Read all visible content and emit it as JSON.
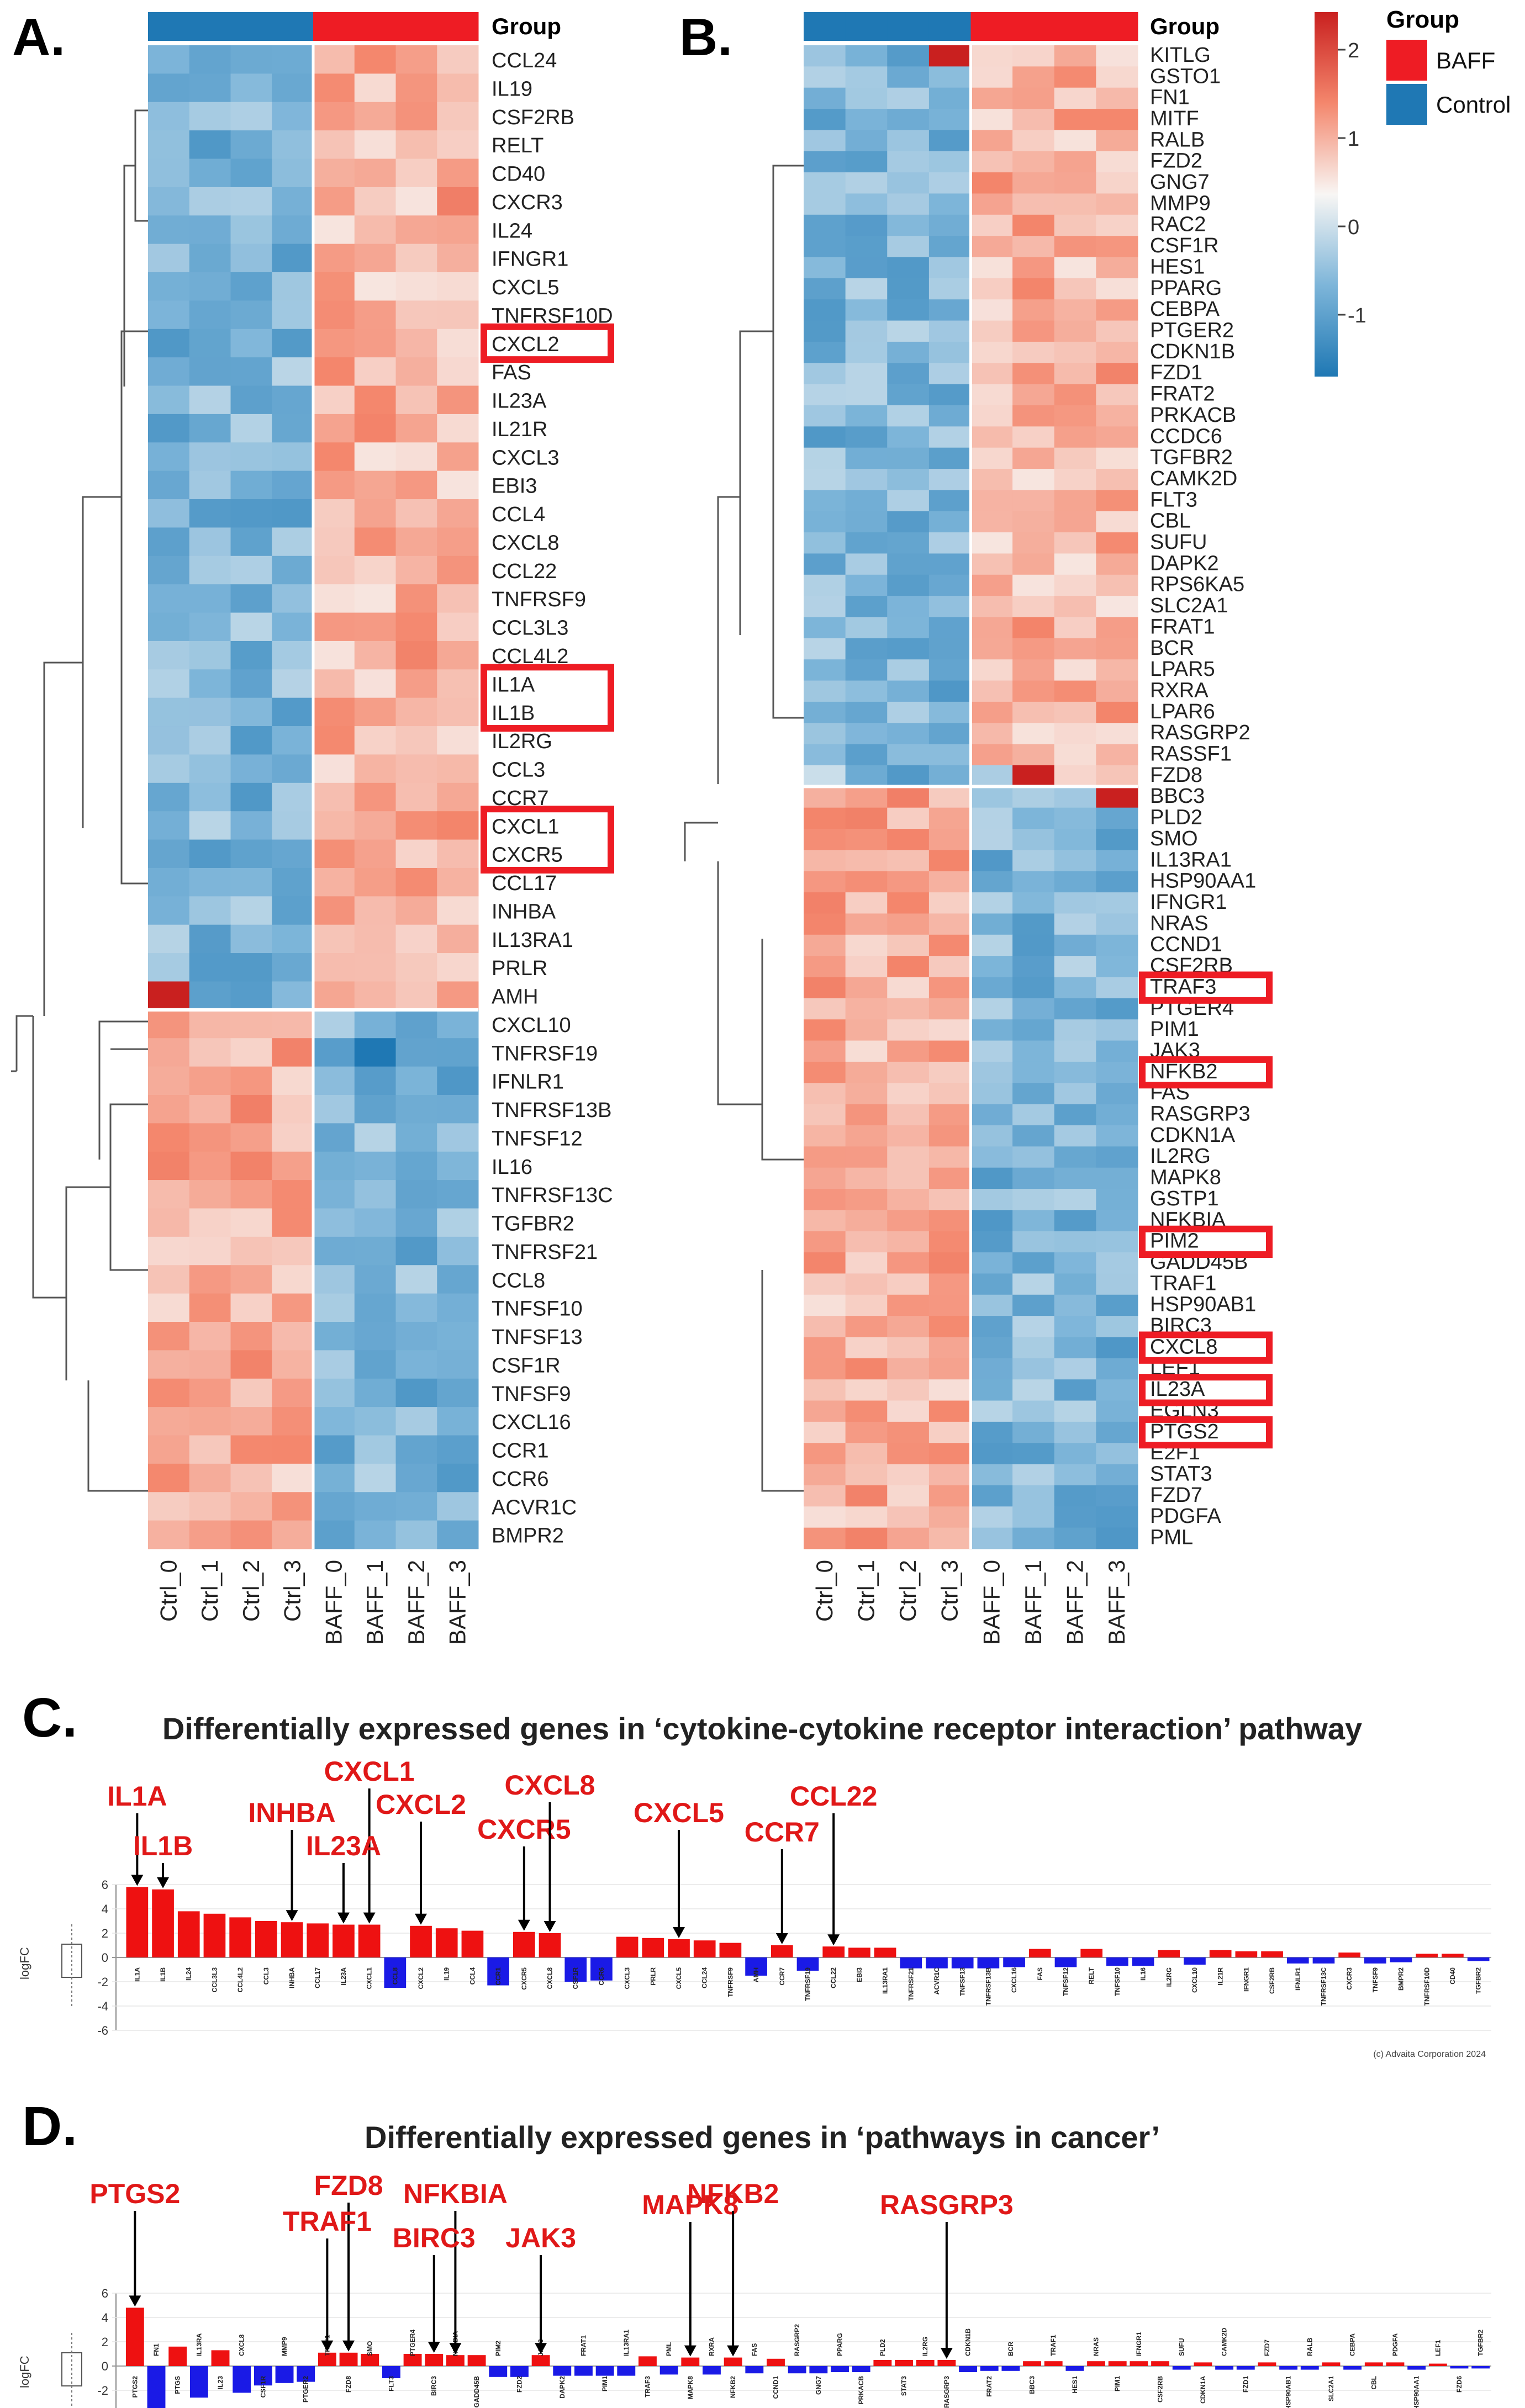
{
  "panels": {
    "A": {
      "letter": "A.",
      "group_label": "Group",
      "genes": [
        "CCL24",
        "IL19",
        "CSF2RB",
        "RELT",
        "CD40",
        "CXCR3",
        "IL24",
        "IFNGR1",
        "CXCL5",
        "TNFRSF10D",
        "CXCL2",
        "FAS",
        "IL23A",
        "IL21R",
        "CXCL3",
        "EBI3",
        "CCL4",
        "CXCL8",
        "CCL22",
        "TNFRSF9",
        "CCL3L3",
        "CCL4L2",
        "IL1A",
        "IL1B",
        "IL2RG",
        "CCL3",
        "CCR7",
        "CXCL1",
        "CXCR5",
        "CCL17",
        "INHBA",
        "IL13RA1",
        "PRLR",
        "AMH",
        "CXCL10",
        "TNFRSF19",
        "IFNLR1",
        "TNFRSF13B",
        "TNFSF12",
        "IL16",
        "TNFRSF13C",
        "TGFBR2",
        "TNFRSF21",
        "CCL8",
        "TNFSF10",
        "TNFSF13",
        "CSF1R",
        "TNFSF9",
        "CXCL16",
        "CCR1",
        "CCR6",
        "ACVR1C",
        "BMPR2"
      ],
      "samples": [
        "Ctrl_0",
        "Ctrl_1",
        "Ctrl_2",
        "Ctrl_3",
        "BAFF_0",
        "BAFF_1",
        "BAFF_2",
        "BAFF_3"
      ],
      "highlighted": [
        "CXCL2",
        "IL1A",
        "IL1B",
        "CXCL1",
        "CXCR5"
      ],
      "split_after": 33
    },
    "B": {
      "letter": "B.",
      "group_label": "Group",
      "genes": [
        "KITLG",
        "GSTO1",
        "FN1",
        "MITF",
        "RALB",
        "FZD2",
        "GNG7",
        "MMP9",
        "RAC2",
        "CSF1R",
        "HES1",
        "PPARG",
        "CEBPA",
        "PTGER2",
        "CDKN1B",
        "FZD1",
        "FRAT2",
        "PRKACB",
        "CCDC6",
        "TGFBR2",
        "CAMK2D",
        "FLT3",
        "CBL",
        "SUFU",
        "DAPK2",
        "RPS6KA5",
        "SLC2A1",
        "FRAT1",
        "BCR",
        "LPAR5",
        "RXRA",
        "LPAR6",
        "RASGRP2",
        "RASSF1",
        "FZD8",
        "BBC3",
        "PLD2",
        "SMO",
        "IL13RA1",
        "HSP90AA1",
        "IFNGR1",
        "NRAS",
        "CCND1",
        "CSF2RB",
        "TRAF3",
        "PTGER4",
        "PIM1",
        "JAK3",
        "NFKB2",
        "FAS",
        "RASGRP3",
        "CDKN1A",
        "IL2RG",
        "MAPK8",
        "GSTP1",
        "NFKBIA",
        "PIM2",
        "GADD45B",
        "TRAF1",
        "HSP90AB1",
        "BIRC3",
        "CXCL8",
        "LEF1",
        "IL23A",
        "EGLN3",
        "PTGS2",
        "E2F1",
        "STAT3",
        "FZD7",
        "PDGFA",
        "PML"
      ],
      "samples": [
        "Ctrl_0",
        "Ctrl_1",
        "Ctrl_2",
        "Ctrl_3",
        "BAFF_0",
        "BAFF_1",
        "BAFF_2",
        "BAFF_3"
      ],
      "highlighted": [
        "TRAF3",
        "NFKB2",
        "PIM2",
        "CXCL8",
        "IL23A",
        "PTGS2"
      ],
      "split_after": 34
    },
    "C": {
      "letter": "C.",
      "title": "Differentially expressed genes in ‘cytokine-cytokine receptor interaction’ pathway",
      "ylabel": "logFC",
      "copyright": "(c) Advaita Corporation 2024",
      "callouts": [
        "IL1A",
        "IL1B",
        "INHBA",
        "CXCL1",
        "CXCL2",
        "IL23A",
        "CXCR5",
        "CXCL8",
        "CXCL5",
        "CCL22",
        "CCR7"
      ]
    },
    "D": {
      "letter": "D.",
      "title": "Differentially expressed genes in ‘pathways in cancer’",
      "ylabel": "logFC",
      "copyright": "(c) Advaita Corporation 2024",
      "callouts": [
        "PTGS2",
        "FZD8",
        "TRAF1",
        "NFKBIA",
        "BIRC3",
        "JAK3",
        "MAPK8",
        "NFKB2",
        "RASGRP3"
      ]
    }
  },
  "legend": {
    "title": "Group",
    "items": [
      {
        "label": "BAFF",
        "color": "#ee1c24"
      },
      {
        "label": "Control",
        "color": "#1f78b4"
      }
    ],
    "scale_ticks": [
      "2",
      "1",
      "0",
      "-1"
    ]
  },
  "chart_data": [
    {
      "type": "bar",
      "title": "Differentially expressed genes in ‘cytokine-cytokine receptor interaction’ pathway",
      "ylabel": "logFC",
      "ylim": [
        -6,
        6
      ],
      "ticks": [
        "6",
        "4",
        "2",
        "0",
        "-2",
        "-4",
        "-6"
      ],
      "categories": [
        "IL1A",
        "IL1B",
        "IL24",
        "CCL3L3",
        "CCL4L2",
        "CCL3",
        "INHBA",
        "CCL17",
        "IL23A",
        "CXCL1",
        "CCL8",
        "CXCL2",
        "IL19",
        "CCL4",
        "CCR1",
        "CXCR5",
        "CXCL8",
        "CSF1R",
        "CCR6",
        "CXCL3",
        "PRLR",
        "CXCL5",
        "CCL24",
        "TNFRSF9",
        "AMH",
        "CCR7",
        "TNFRSF19",
        "CCL22",
        "EBI3",
        "IL13RA1",
        "TNFRSF21",
        "ACVR1C",
        "TNFSF13",
        "TNFRSF13B",
        "CXCL16",
        "FAS",
        "TNFSF12",
        "RELT",
        "TNFSF10",
        "IL16",
        "IL2RG",
        "CXCL10",
        "IL21R",
        "IFNGR1",
        "CSF2RB",
        "IFNLR1",
        "TNFRSF13C",
        "CXCR3",
        "TNFSF9",
        "BMPR2",
        "TNFRSF10D",
        "CD40",
        "TGFBR2"
      ],
      "values": [
        5.8,
        5.6,
        3.8,
        3.6,
        3.3,
        3.0,
        2.9,
        2.8,
        2.7,
        2.7,
        -2.5,
        2.6,
        2.4,
        2.2,
        -2.3,
        2.1,
        2.0,
        -2.0,
        -1.9,
        1.7,
        1.6,
        1.5,
        1.4,
        1.2,
        -1.5,
        1.0,
        -1.1,
        0.9,
        0.8,
        0.8,
        -0.9,
        -0.9,
        -0.9,
        -0.9,
        -0.8,
        0.7,
        -0.8,
        0.7,
        -0.7,
        -0.7,
        0.6,
        -0.6,
        0.6,
        0.5,
        0.5,
        -0.5,
        -0.5,
        0.4,
        -0.5,
        -0.4,
        0.3,
        0.3,
        -0.3
      ],
      "label_order": [
        "IL1A",
        "IL1B",
        "IL24",
        "CCL3L3",
        "CCL4L2",
        "CCL3",
        "INHBA",
        "CCL17",
        "IL23A",
        "CXCL1",
        "CCL8",
        "CXCL2",
        "IL19",
        "CCL4",
        "CCR1",
        "CXCR5",
        "CXCL8",
        "CSF1R",
        "CCR6",
        "CXCL3",
        "PRLR",
        "CXCL5",
        "CCL24",
        "TNFRSF9",
        "AMH",
        "CCR7",
        "TNFRSF19",
        "CCL22",
        "EBI3",
        "IL13RA1",
        "TNFRSF21",
        "ACVR1C",
        "TNFSF13",
        "TNFRSF13B",
        "CXCL16",
        "FAS",
        "TNFSF12",
        "RELT",
        "TNFSF10",
        "IL16",
        "IL2RG",
        "CXCL10",
        "IL21R",
        "IFNGR1",
        "CSF2RB",
        "IFNLR1",
        "TNFRSF13C",
        "CXCR3",
        "TNFSF9",
        "BMPR2",
        "TNFRSF10D",
        "CD40",
        "TGFBR2"
      ]
    },
    {
      "type": "bar",
      "title": "Differentially expressed genes in ‘pathways in cancer’",
      "ylabel": "logFC",
      "ylim": [
        -6,
        6
      ],
      "ticks": [
        "6",
        "4",
        "2",
        "0",
        "-2",
        "-4",
        "-6"
      ],
      "categories": [
        "PTGS2",
        "FN1",
        "PTGS",
        "IL13RA",
        "IL23",
        "CXCL8",
        "CSF1R",
        "MMP9",
        "PTGER2",
        "TRAF1",
        "FZD8",
        "SMO",
        "FLT3",
        "PTGER4",
        "BIRC3",
        "NFKBIA",
        "GADD45B",
        "PIM2",
        "FZD2",
        "JAK3",
        "DAPK2",
        "FRAT1",
        "PIM1",
        "IL13RA1",
        "TRAF3",
        "PML",
        "MAPK8",
        "RXRA",
        "NFKB2",
        "FAS",
        "CCND1",
        "RASGRP2",
        "GNG7",
        "PPARG",
        "PRKACB",
        "PLD2",
        "STAT3",
        "IL2RG",
        "RASGRP3",
        "CDKN1B",
        "FRAT2",
        "BCR",
        "BBC3",
        "TRAF1b",
        "HES1",
        "NRAS",
        "PIM1b",
        "IFNGR1",
        "CSF2RB",
        "SUFU",
        "CDKN1A",
        "CAMK2D",
        "FZD1",
        "FZD7",
        "HSP90AB1",
        "RALB",
        "SLC2A1",
        "CEBPA",
        "CBL",
        "PDGFA",
        "HSP90AA1",
        "LEF1",
        "FZD6",
        "TGFBR2"
      ],
      "values": [
        4.8,
        -4.0,
        1.6,
        -2.6,
        1.3,
        -2.2,
        -1.6,
        -1.4,
        -1.3,
        1.1,
        1.1,
        1.0,
        -1.0,
        1.0,
        1.0,
        0.9,
        0.9,
        -0.9,
        -0.9,
        0.9,
        -0.8,
        -0.8,
        -0.8,
        -0.8,
        0.8,
        -0.7,
        0.7,
        -0.7,
        0.7,
        -0.6,
        0.6,
        -0.6,
        -0.6,
        -0.5,
        -0.5,
        0.5,
        0.5,
        0.5,
        0.5,
        -0.5,
        -0.4,
        -0.4,
        0.4,
        0.4,
        -0.4,
        0.4,
        0.4,
        0.4,
        0.4,
        -0.3,
        0.3,
        -0.3,
        -0.3,
        0.3,
        -0.3,
        -0.3,
        0.3,
        -0.3,
        0.3,
        0.3,
        -0.3,
        0.2,
        -0.2,
        -0.2
      ],
      "label_order": [
        "PTGS2",
        "FN1",
        "PTGS",
        "IL13RA",
        "IL23",
        "CXCL8",
        "CSF1R",
        "MMP9",
        "PTGER2",
        "TRAF1",
        "FZD8",
        "SMO",
        "FLT3",
        "PTGER4",
        "BIRC3",
        "NFKBIA",
        "GADD45B",
        "PIM2",
        "FZD2",
        "JAK3",
        "DAPK2",
        "FRAT1",
        "PIM1",
        "IL13RA1",
        "TRAF3",
        "PML",
        "MAPK8",
        "RXRA",
        "NFKB2",
        "FAS",
        "CCND1",
        "RASGRP2",
        "GNG7",
        "PPARG",
        "PRKACB",
        "PLD2",
        "STAT3",
        "IL2RG",
        "RASGRP3",
        "CDKN1B",
        "FRAT2",
        "BCR",
        "BBC3",
        "TRAF1",
        "HES1",
        "NRAS",
        "PIM1",
        "IFNGR1",
        "CSF2RB",
        "SUFU",
        "CDKN1A",
        "CAMK2D",
        "FZD1",
        "FZD7",
        "HSP90AB1",
        "RALB",
        "SLC2A1",
        "CEBPA",
        "CBL",
        "PDGFA",
        "HSP90AA1",
        "LEF1",
        "FZD6",
        "TGFBR2"
      ]
    }
  ]
}
